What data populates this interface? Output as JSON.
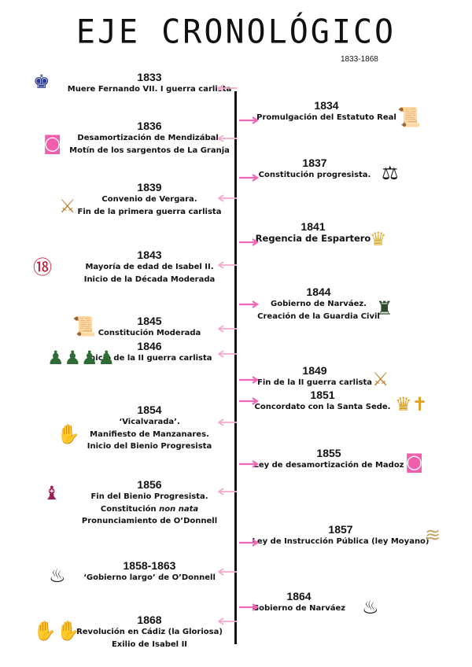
{
  "title": "EJE CRONOLÓGICO",
  "subtitle": "1833-1868",
  "colors": {
    "arrow_left": "#f7a8cf",
    "arrow_right": "#f266b8",
    "axis": "#111111"
  },
  "events": [
    {
      "year": "1833",
      "side": "left",
      "lines": [
        "Muere Fernando VII. I guerra carlista"
      ],
      "icon": "king-portrait-icon"
    },
    {
      "year": "1834",
      "side": "right",
      "lines": [
        "Promulgación del Estatuto Real"
      ],
      "icon": "parchment-scroll-icon"
    },
    {
      "year": "1836",
      "side": "left",
      "lines": [
        "Desamortización de Mendizábal.",
        "Motín de los sargentos de La Granja"
      ],
      "icon": "shopping-bag-icon"
    },
    {
      "year": "1837",
      "side": "right",
      "lines": [
        "Constitución progresista."
      ],
      "icon": "scales-icon"
    },
    {
      "year": "1839",
      "side": "left",
      "lines": [
        "Convenio de Vergara.",
        "Fin de la primera guerra carlista"
      ],
      "icon": "crossed-swords-icon"
    },
    {
      "year": "1841",
      "side": "right",
      "lines": [
        "Regencia de Espartero"
      ],
      "icon": "crown-baby-icon"
    },
    {
      "year": "1843",
      "side": "left",
      "lines": [
        "Mayoría de edad de Isabel II.",
        "Inicio de la Década Moderada"
      ],
      "icon": "age-13-candles-icon"
    },
    {
      "year": "1844",
      "side": "right",
      "lines": [
        "Gobierno de Narváez.",
        "Creación de la Guardia Civil"
      ],
      "icon": "guard-icon"
    },
    {
      "year": "1845",
      "side": "left",
      "lines": [
        "Constitución Moderada"
      ],
      "icon": "parchment-scroll-icon"
    },
    {
      "year": "1846",
      "side": "left",
      "lines": [
        "Inicio de la II guerra carlista"
      ],
      "icon": "soldiers-icon"
    },
    {
      "year": "1849",
      "side": "right",
      "lines": [
        "Fin de la II guerra carlista"
      ],
      "icon": "crossed-swords-icon"
    },
    {
      "year": "1851",
      "side": "right",
      "lines": [
        "Concordato con la Santa Sede."
      ],
      "icon": "crown-cross-podium-icon"
    },
    {
      "year": "1854",
      "side": "left",
      "lines": [
        "‘Vicalvarada’.",
        "Manifiesto de Manzanares.",
        "Inicio del Bienio Progresista"
      ],
      "icon": "handshake-icon"
    },
    {
      "year": "1855",
      "side": "right",
      "lines": [
        "Ley de desamortización de Madoz"
      ],
      "icon": "shopping-bag-icon"
    },
    {
      "year": "1856",
      "side": "left",
      "lines": [
        "Fin del Bienio Progresista.",
        "Constitución |non nata|",
        "Pronunciamiento de O’Donnell"
      ],
      "icon": "general-figure-icon"
    },
    {
      "year": "1857",
      "side": "right",
      "lines": [
        "Ley de Instrucción Pública (ley Moyano)"
      ],
      "icon": "diploma-icon"
    },
    {
      "year": "1858-1863",
      "side": "left",
      "lines": [
        "‘Gobierno largo’ de O’Donnell"
      ],
      "icon": "flame-crown-icon"
    },
    {
      "year": "1864",
      "side": "right",
      "lines": [
        "Gobierno de Narváez"
      ],
      "icon": "flame-crown-icon"
    },
    {
      "year": "1868",
      "side": "left",
      "lines": [
        "Revolución en Cádiz (la Gloriosa)",
        "Exilio de Isabel II"
      ],
      "icon": "raised-hands-icon"
    }
  ]
}
